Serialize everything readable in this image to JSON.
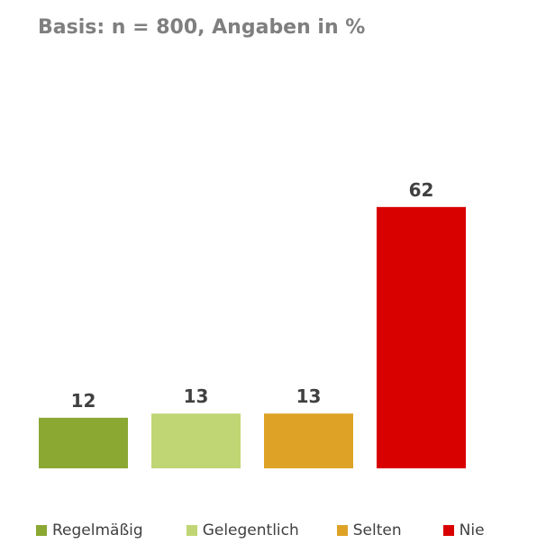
{
  "chart_data": {
    "type": "bar",
    "subtitle": "Basis: n = 800, Angaben in %",
    "categories": [
      "Regelmäßig",
      "Gelegentlich",
      "Selten",
      "Nie"
    ],
    "values": [
      12,
      13,
      13,
      62
    ],
    "colors": [
      "#8aa832",
      "#c0d674",
      "#dea326",
      "#d90000"
    ],
    "ylim": [
      0,
      100
    ],
    "grid": false,
    "legend_position": "bottom"
  }
}
